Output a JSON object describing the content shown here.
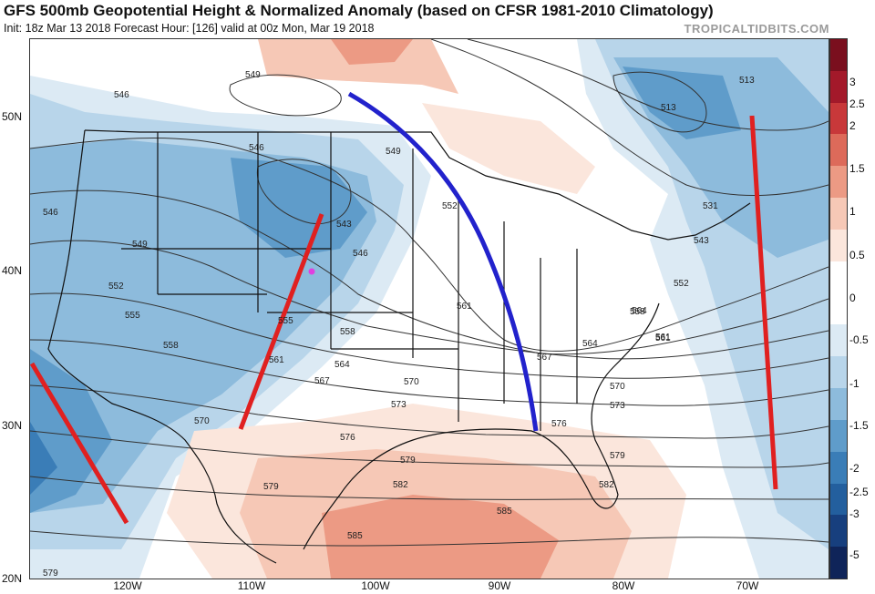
{
  "header": {
    "title": "GFS 500mb Geopotential Height & Normalized Anomaly (based on CFSR 1981-2010 Climatology)",
    "subtitle": "Init: 18z Mar 13 2018   Forecast Hour: [126]   valid at 00z Mon, Mar 19 2018",
    "credit": "TROPICALTIDBITS.COM"
  },
  "axes": {
    "latitudes": [
      "50N",
      "40N",
      "30N",
      "20N"
    ],
    "longitudes": [
      "120W",
      "110W",
      "100W",
      "90W",
      "80W",
      "70W"
    ]
  },
  "colorbar": {
    "ticks": [
      "3",
      "2.5",
      "2",
      "1.5",
      "1",
      "0.5",
      "0",
      "-0.5",
      "-1",
      "-1.5",
      "-2",
      "-2.5",
      "-3",
      "-5"
    ],
    "colors": [
      "#7a0f1e",
      "#a3192a",
      "#c8383a",
      "#dd6a5a",
      "#ec9a84",
      "#f6c8b6",
      "#fbe6dc",
      "#ffffff",
      "#ffffff",
      "#dceaf4",
      "#b8d5ea",
      "#8dbbdc",
      "#5f9cca",
      "#3a7db7",
      "#235f9e",
      "#173f7e",
      "#0f2459"
    ]
  },
  "contour_labels": [
    "549",
    "546",
    "546",
    "546",
    "549",
    "543",
    "546",
    "549",
    "552",
    "552",
    "555",
    "555",
    "558",
    "558",
    "561",
    "561",
    "561",
    "564",
    "564",
    "564",
    "567",
    "567",
    "570",
    "570",
    "570",
    "573",
    "573",
    "576",
    "576",
    "579",
    "579",
    "579",
    "582",
    "582",
    "585",
    "585",
    "579",
    "513",
    "513",
    "531",
    "543",
    "552",
    "558",
    "561"
  ],
  "overlays": {
    "blue_line_color": "#2222cc",
    "red_line_color": "#e02020",
    "marker_color": "#e040e0"
  }
}
